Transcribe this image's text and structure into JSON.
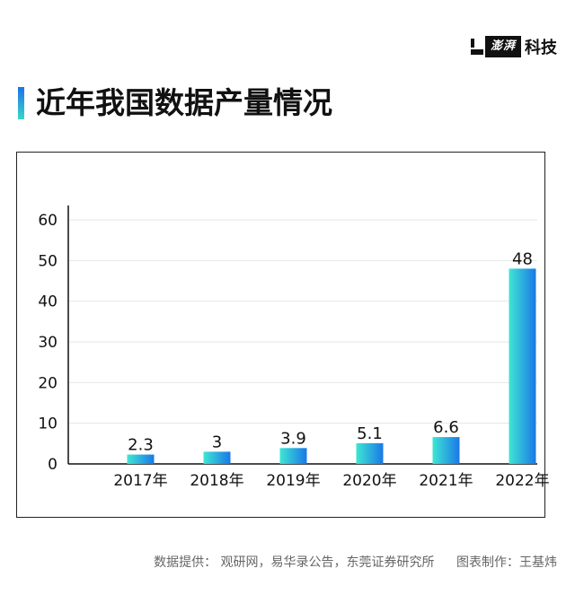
{
  "brand": {
    "box_text": "澎湃",
    "text": "科技"
  },
  "title": "近年我国数据产量情况",
  "chart_data": {
    "type": "bar",
    "categories": [
      "2017年",
      "2018年",
      "2019年",
      "2020年",
      "2021年",
      "2022年"
    ],
    "values": [
      2.3,
      3,
      3.9,
      5.1,
      6.6,
      48
    ],
    "value_labels": [
      "2.3",
      "3",
      "3.9",
      "5.1",
      "6.6",
      "48"
    ],
    "title": "",
    "xlabel": "",
    "ylabel": "",
    "ylim": [
      0,
      60
    ],
    "yticks": [
      0,
      10,
      20,
      30,
      40,
      50,
      60
    ],
    "grid": true,
    "colors": {
      "bar_left": "#3ee6d3",
      "bar_right": "#1a78e8"
    }
  },
  "footer": {
    "source": "数据提供： 观研网，易华录公告，东莞证券研究所",
    "credit": "图表制作：王基炜"
  }
}
